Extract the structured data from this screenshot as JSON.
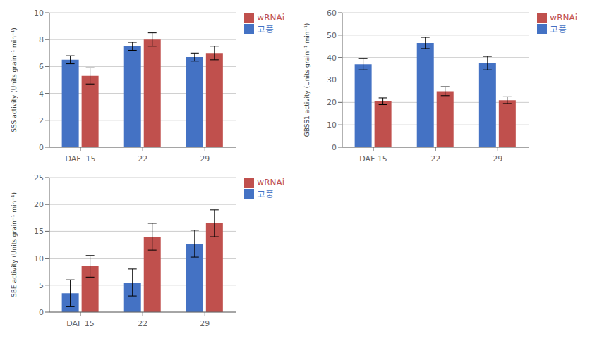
{
  "chart_data": [
    {
      "type": "bar",
      "categories": [
        "DAF  15",
        "22",
        "29"
      ],
      "series": [
        {
          "name": "고풍",
          "color": "#4472C4",
          "values": [
            6.5,
            7.5,
            6.7
          ],
          "errors": [
            0.3,
            0.3,
            0.3
          ]
        },
        {
          "name": "wRNAi",
          "color": "#C0504D",
          "values": [
            5.3,
            8.0,
            7.0
          ],
          "errors": [
            0.6,
            0.5,
            0.5
          ]
        }
      ],
      "ylabel": "SSS activity (Units grain⁻¹ min⁻¹)",
      "ylim": [
        0,
        10
      ],
      "yticks": [
        0,
        2,
        4,
        6,
        8,
        10
      ],
      "grid": true,
      "legend": "right"
    },
    {
      "type": "bar",
      "categories": [
        "DAF 15",
        "22",
        "29"
      ],
      "series": [
        {
          "name": "고풍",
          "color": "#4472C4",
          "values": [
            37.0,
            46.5,
            37.5
          ],
          "errors": [
            2.5,
            2.5,
            3.0
          ]
        },
        {
          "name": "wRNAi",
          "color": "#C0504D",
          "values": [
            20.5,
            25.0,
            21.0
          ],
          "errors": [
            1.5,
            2.0,
            1.5
          ]
        }
      ],
      "ylabel": "GBSS1 activity (Units grain⁻¹ min⁻¹)",
      "ylim": [
        0,
        60
      ],
      "yticks": [
        0,
        10,
        20,
        30,
        40,
        50,
        60
      ],
      "grid": true,
      "legend": "right"
    },
    {
      "type": "bar",
      "categories": [
        "DAF 15",
        "22",
        "29"
      ],
      "series": [
        {
          "name": "고풍",
          "color": "#4472C4",
          "values": [
            3.5,
            5.5,
            12.7
          ],
          "errors": [
            2.5,
            2.5,
            2.5
          ]
        },
        {
          "name": "wRNAi",
          "color": "#C0504D",
          "values": [
            8.5,
            14.0,
            16.5
          ],
          "errors": [
            2.0,
            2.5,
            2.5
          ]
        }
      ],
      "ylabel": "SBE activity (Units grain⁻¹ min⁻¹)",
      "ylim": [
        0,
        25
      ],
      "yticks": [
        0,
        5,
        10,
        15,
        20,
        25
      ],
      "grid": true,
      "legend": "right"
    }
  ]
}
